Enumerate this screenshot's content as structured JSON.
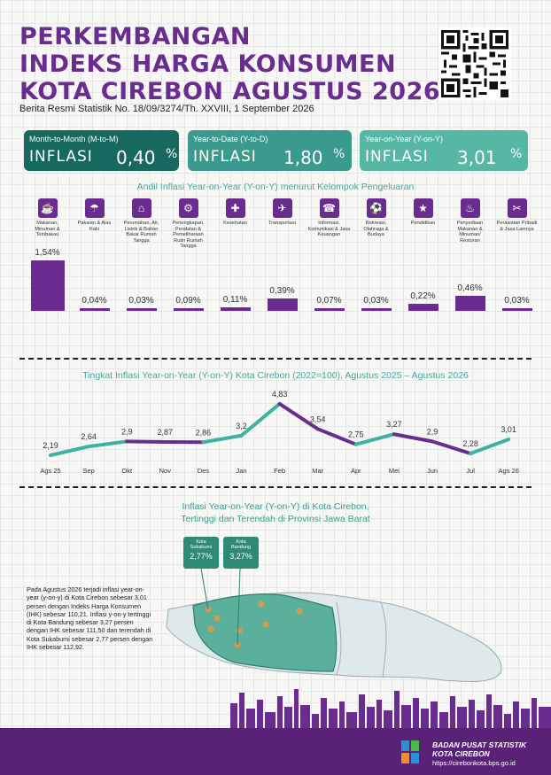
{
  "title": {
    "line1": "PERKEMBANGAN",
    "line2": "INDEKS HARGA KONSUMEN",
    "line3": "KOTA CIREBON AGUSTUS 2026",
    "subtitle": "Berita Resmi Statistik No. 18/09/3274/Th. XXVIII, 1 September 2026"
  },
  "cards": [
    {
      "label": "Month-to-Month (M-to-M)",
      "word": "INFLASI",
      "value": "0,40",
      "unit": "%",
      "color": "#17685f"
    },
    {
      "label": "Year-to-Date (Y-to-D)",
      "word": "INFLASI",
      "value": "1,80",
      "unit": "%",
      "color": "#3a9a8d"
    },
    {
      "label": "Year-on-Year (Y-on-Y)",
      "word": "INFLASI",
      "value": "3,01",
      "unit": "%",
      "color": "#56b7a5"
    }
  ],
  "colors": {
    "purple": "#6a2c8f",
    "teal": "#3fb3a2",
    "footer": "#5a2276"
  },
  "chart_data": [
    {
      "type": "bar",
      "title": "Andil Inflasi Year-on-Year (Y-on-Y) menurut Kelompok Pengeluaran",
      "categories": [
        "Makanan, Minuman & Tembakau",
        "Pakaian & Alas Kaki",
        "Perumahan, Air, Listrik & Bahan Bakar Rumah Tangga",
        "Perlengkapan, Peralatan & Pemeliharaan Rutin Rumah Tangga",
        "Kesehatan",
        "Transportasi",
        "Informasi, Komunikasi & Jasa Keuangan",
        "Rekreasi, Olahraga & Budaya",
        "Pendidikan",
        "Penyediaan Makanan & Minuman/ Restoran",
        "Perawatan Pribadi & Jasa Lainnya"
      ],
      "icons": [
        "food-icon",
        "clothing-icon",
        "house-icon",
        "appliance-icon",
        "health-icon",
        "airplane-icon",
        "phone-icon",
        "sport-icon",
        "graduation-cap-icon",
        "restaurant-icon",
        "tools-icon"
      ],
      "values": [
        1.54,
        0.04,
        0.03,
        0.09,
        0.11,
        0.39,
        0.07,
        0.03,
        0.22,
        0.46,
        0.03
      ],
      "labels": [
        "1,54%",
        "0,04%",
        "0,03%",
        "0,09%",
        "0,11%",
        "0,39%",
        "0,07%",
        "0,03%",
        "0,22%",
        "0,46%",
        "0,03%"
      ]
    },
    {
      "type": "line",
      "title": "Tingkat Inflasi Year-on-Year (Y-on-Y) Kota Cirebon (2022=100), Agustus 2025 – Agustus 2026",
      "categories": [
        "Ags 25",
        "Sep",
        "Okt",
        "Nov",
        "Des",
        "Jan",
        "Feb",
        "Mar",
        "Apr",
        "Mei",
        "Jun",
        "Jul",
        "Ags 26"
      ],
      "values": [
        2.19,
        2.64,
        2.9,
        2.87,
        2.86,
        3.2,
        4.83,
        3.54,
        2.75,
        3.27,
        2.9,
        2.28,
        3.01
      ],
      "labels": [
        "2,19",
        "2,64",
        "2,9",
        "2,87",
        "2,86",
        "3,2",
        "4,83",
        "3,54",
        "2,75",
        "3,27",
        "2,9",
        "2,28",
        "3,01"
      ]
    }
  ],
  "map": {
    "title_line1": "Inflasi Year-on-Year (Y-on-Y) di Kota Cirebon,",
    "title_line2": "Tertinggi dan Terendah di Provinsi Jawa Barat",
    "callout_low": {
      "name_line1": "Kota",
      "name_line2": "Sukabumi",
      "value": "2,77%"
    },
    "callout_high": {
      "name_line1": "Kota",
      "name_line2": "Bandung",
      "value": "3,27%"
    },
    "description": "Pada Agustus 2026 terjadi inflasi year-on-year (y-on-y) di Kota Cirebon sebesar 3,01 persen dengan Indeks Harga Konsumen (IHK) sebesar 110,21. Inflasi y-on-y tertinggi di Kota Bandung sebesar 3,27 persen dengan IHK sebesar 111,50 dan terendah di Kota Sukabumi sebesar 2,77 persen dengan IHK sebesar 112,92."
  },
  "footer": {
    "org_line1": "BADAN PUSAT STATISTIK",
    "org_line2": "KOTA CIREBON",
    "url": "https://cirebonkota.bps.go.id"
  }
}
